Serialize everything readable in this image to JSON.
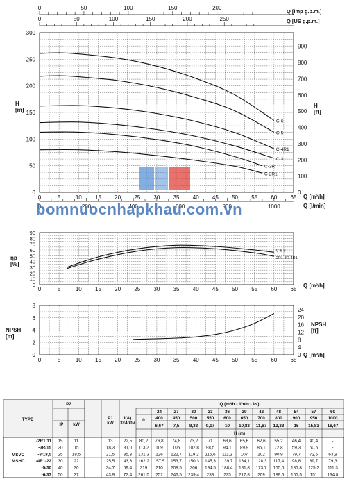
{
  "watermark": "bomnuocnhapkhau.com.vn",
  "chart_data": [
    {
      "type": "line",
      "name": "head",
      "ylabel": "H\n[m]",
      "ylabel_right": "H\n[ft]",
      "xlabel": "Q [m³/h]",
      "xlabel2": "Q [l/min]",
      "top_axis1": "Q [imp g.p.m.]",
      "top_axis2": "Q [US g.p.m.]",
      "xlim": [
        0,
        65
      ],
      "ylim": [
        0,
        300
      ],
      "xticks": [
        0,
        5,
        10,
        15,
        20,
        25,
        30,
        35,
        40,
        45,
        50,
        55,
        60,
        65
      ],
      "yticks": [
        0,
        50,
        100,
        150,
        200,
        250,
        300
      ],
      "ft_ticks": [
        0,
        100,
        200,
        300,
        400,
        500,
        600,
        700,
        800,
        900
      ],
      "lmin_ticks": [
        0,
        200,
        400,
        600,
        800,
        1000
      ],
      "imp_ticks": [
        0,
        50,
        100,
        150,
        200
      ],
      "us_ticks": [
        0,
        50,
        100,
        150,
        200,
        250
      ],
      "series": [
        {
          "name": "C-6",
          "x": [
            0,
            5,
            10,
            20,
            30,
            40,
            50,
            60
          ],
          "y": [
            261,
            262,
            260,
            252,
            237,
            214,
            183,
            135
          ]
        },
        {
          "name": "C-5",
          "x": [
            0,
            5,
            10,
            20,
            30,
            40,
            50,
            60
          ],
          "y": [
            218,
            219,
            217,
            210,
            197,
            178,
            153,
            113
          ]
        },
        {
          "name": "C-4R1",
          "x": [
            0,
            10,
            20,
            30,
            40,
            50,
            60
          ],
          "y": [
            162,
            163,
            158,
            148,
            133,
            112,
            82
          ]
        },
        {
          "name": "C-3",
          "x": [
            0,
            10,
            20,
            30,
            40,
            50,
            60
          ],
          "y": [
            131,
            132,
            127,
            118,
            105,
            87,
            64
          ]
        },
        {
          "name": "C-3R",
          "x": [
            0,
            10,
            20,
            30,
            40,
            50,
            57
          ],
          "y": [
            113,
            113,
            108,
            99,
            86,
            67,
            50
          ]
        },
        {
          "name": "C-2R1",
          "x": [
            0,
            10,
            20,
            30,
            40,
            50,
            57
          ],
          "y": [
            80,
            80,
            76,
            69,
            60,
            49,
            36
          ]
        }
      ]
    },
    {
      "type": "line",
      "name": "efficiency",
      "ylabel": "ηp\n[%]",
      "xlabel": "Q [m³/h]",
      "xlim": [
        0,
        65
      ],
      "ylim": [
        0,
        90
      ],
      "yticks": [
        0,
        10,
        20,
        30,
        40,
        50,
        60,
        70,
        80,
        90
      ],
      "xticks": [
        0,
        5,
        10,
        15,
        20,
        25,
        30,
        35,
        40,
        45,
        50,
        55,
        60,
        65
      ],
      "series": [
        {
          "name": "C-6-5",
          "x": [
            7,
            15,
            25,
            35,
            45,
            55,
            60
          ],
          "y": [
            30,
            48,
            62,
            68,
            66,
            60,
            56
          ]
        },
        {
          "name": "2R1-3R-4R1",
          "x": [
            7,
            15,
            25,
            35,
            45,
            55,
            60
          ],
          "y": [
            28,
            44,
            58,
            64,
            62,
            55,
            49
          ]
        }
      ],
      "labels": [
        "C-6-5",
        "2R1-3R-4R1"
      ]
    },
    {
      "type": "line",
      "name": "npsh",
      "ylabel": "NPSH\n[m]",
      "ylabel_right": "NPSH\n[ft]",
      "xlabel": "Q [m³/h]",
      "xlim": [
        0,
        65
      ],
      "ylim": [
        0,
        8
      ],
      "yticks": [
        0,
        2,
        4,
        6,
        8
      ],
      "ft_ticks": [
        0,
        4,
        8,
        12,
        16,
        20,
        24
      ],
      "xticks": [
        0,
        5,
        10,
        15,
        20,
        25,
        30,
        35,
        40,
        45,
        50,
        55,
        60,
        65
      ],
      "series": [
        {
          "name": "NPSH",
          "x": [
            24,
            30,
            35,
            40,
            45,
            50,
            55,
            60
          ],
          "y": [
            2.5,
            2.6,
            2.7,
            2.9,
            3.3,
            4.0,
            5.1,
            6.7
          ]
        }
      ]
    },
    {
      "type": "table",
      "name": "performance-table",
      "header": {
        "type": "TYPE",
        "p2": "P2",
        "hp": "HP",
        "kw": "kW",
        "p1": "P1\nkW",
        "current": "I(A)\n3x400V",
        "q_title": "Q (m³/h - l/min - l/s)",
        "h_title": "H (m)",
        "m3h": [
          "0",
          "24",
          "27",
          "30",
          "33",
          "36",
          "39",
          "42",
          "48",
          "54",
          "57",
          "60"
        ],
        "lmin": [
          "0",
          "400",
          "450",
          "500",
          "550",
          "600",
          "650",
          "700",
          "800",
          "900",
          "950",
          "1000"
        ],
        "ls": [
          "",
          "6,67",
          "7,5",
          "8,33",
          "9,17",
          "10",
          "10,83",
          "11,67",
          "13,33",
          "15",
          "15,83",
          "16,67"
        ]
      },
      "group": [
        "MSVC",
        "MSHC"
      ],
      "rows": [
        {
          "type": "-2R1/11",
          "hp": "15",
          "kw": "11",
          "p1": "13",
          "i": "22,5",
          "h": [
            "80,2",
            "76,8",
            "74,8",
            "73,2",
            "71",
            "68,6",
            "65,6",
            "62,6",
            "55,2",
            "46,4",
            "40,4",
            "-"
          ]
        },
        {
          "type": "-3R/15",
          "hp": "20",
          "kw": "15",
          "p1": "18,3",
          "i": "31,0",
          "h": [
            "113,2",
            "109",
            "106",
            "102,8",
            "98,5",
            "94,1",
            "89,9",
            "85,1",
            "72,8",
            "59,3",
            "50,6",
            "-"
          ]
        },
        {
          "type": "-3/18,5",
          "hp": "25",
          "kw": "18,5",
          "p1": "21,5",
          "i": "35,3",
          "h": [
            "131,3",
            "126",
            "122,7",
            "119,2",
            "115,6",
            "111,3",
            "107",
            "102",
            "90,9",
            "79,7",
            "72,5",
            "63,8"
          ]
        },
        {
          "type": "-4R1/22",
          "hp": "30",
          "kw": "22",
          "p1": "25,5",
          "i": "43,3",
          "h": [
            "162,2",
            "157,5",
            "153,7",
            "150,3",
            "145,3",
            "139,7",
            "134,1",
            "128,3",
            "117,4",
            "98,8",
            "89,7",
            "79,3"
          ]
        },
        {
          "type": "-5/30",
          "hp": "40",
          "kw": "30",
          "p1": "34,7",
          "i": "59,4",
          "h": [
            "219",
            "210",
            "208,5",
            "206",
            "194,5",
            "188,4",
            "181,8",
            "173,7",
            "155,5",
            "135,8",
            "125,2",
            "111,3"
          ]
        },
        {
          "type": "-6/37",
          "hp": "50",
          "kw": "37",
          "p1": "43,9",
          "i": "72,4",
          "h": [
            "261,5",
            "252",
            "246,5",
            "239,4",
            "233",
            "225",
            "217,8",
            "209",
            "189,6",
            "165,5",
            "151",
            "134,8"
          ]
        }
      ]
    }
  ]
}
